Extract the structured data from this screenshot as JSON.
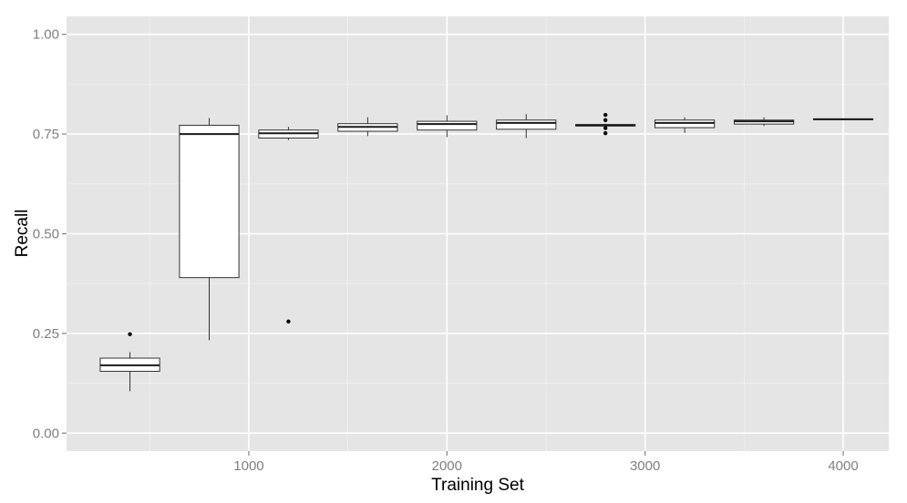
{
  "chart_data": {
    "type": "boxplot",
    "title": "",
    "xlabel": "Training Set",
    "ylabel": "Recall",
    "xlim": [
      80,
      4230
    ],
    "ylim": [
      -0.045,
      1.045
    ],
    "x_ticks": [
      1000,
      2000,
      3000,
      4000
    ],
    "y_ticks": [
      0.0,
      0.25,
      0.5,
      0.75,
      1.0
    ],
    "y_tick_labels": [
      "0.00",
      "0.25",
      "0.50",
      "0.75",
      "1.00"
    ],
    "grid": true,
    "panel_color": "#e5e5e5",
    "grid_color": "#ffffff",
    "box_width": 300,
    "boxes": [
      {
        "x": 400,
        "lower_whisker": 0.105,
        "q1": 0.155,
        "median": 0.17,
        "q3": 0.188,
        "upper_whisker": 0.203,
        "outliers": [
          0.248
        ]
      },
      {
        "x": 800,
        "lower_whisker": 0.233,
        "q1": 0.39,
        "median": 0.75,
        "q3": 0.772,
        "upper_whisker": 0.79,
        "outliers": []
      },
      {
        "x": 1200,
        "lower_whisker": 0.735,
        "q1": 0.74,
        "median": 0.752,
        "q3": 0.76,
        "upper_whisker": 0.768,
        "outliers": [
          0.28
        ]
      },
      {
        "x": 1600,
        "lower_whisker": 0.745,
        "q1": 0.757,
        "median": 0.768,
        "q3": 0.776,
        "upper_whisker": 0.792,
        "outliers": []
      },
      {
        "x": 2000,
        "lower_whisker": 0.742,
        "q1": 0.76,
        "median": 0.775,
        "q3": 0.782,
        "upper_whisker": 0.797,
        "outliers": []
      },
      {
        "x": 2400,
        "lower_whisker": 0.74,
        "q1": 0.762,
        "median": 0.778,
        "q3": 0.785,
        "upper_whisker": 0.8,
        "outliers": []
      },
      {
        "x": 2800,
        "lower_whisker": 0.768,
        "q1": 0.77,
        "median": 0.772,
        "q3": 0.774,
        "upper_whisker": 0.776,
        "outliers": [
          0.798,
          0.785,
          0.765,
          0.752
        ]
      },
      {
        "x": 3200,
        "lower_whisker": 0.753,
        "q1": 0.766,
        "median": 0.778,
        "q3": 0.785,
        "upper_whisker": 0.792,
        "outliers": []
      },
      {
        "x": 3600,
        "lower_whisker": 0.77,
        "q1": 0.775,
        "median": 0.782,
        "q3": 0.785,
        "upper_whisker": 0.792,
        "outliers": []
      },
      {
        "x": 4000,
        "lower_whisker": 0.785,
        "q1": 0.786,
        "median": 0.787,
        "q3": 0.788,
        "upper_whisker": 0.789,
        "outliers": []
      }
    ]
  }
}
